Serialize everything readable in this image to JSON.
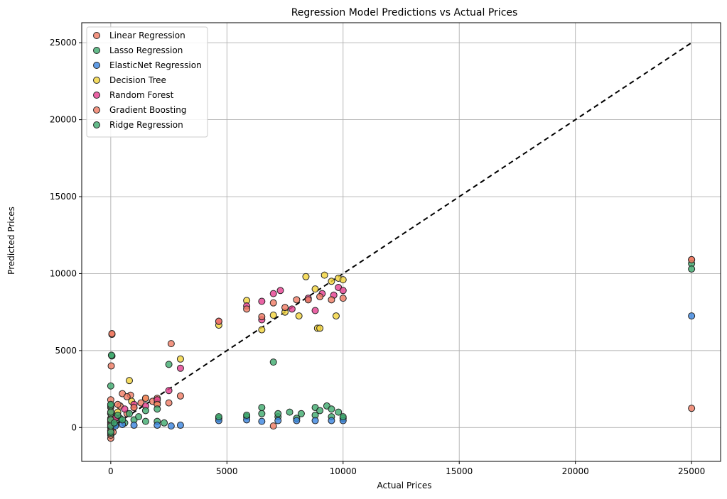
{
  "chart_data": {
    "type": "scatter",
    "title": "Regression Model Predictions vs Actual Prices",
    "xlabel": "Actual Prices",
    "ylabel": "Predicted Prices",
    "xlim": [
      -1250,
      26250
    ],
    "ylim": [
      -2200,
      26300
    ],
    "xticks": [
      0,
      5000,
      10000,
      15000,
      20000,
      25000
    ],
    "yticks": [
      0,
      5000,
      10000,
      15000,
      20000,
      25000
    ],
    "grid": true,
    "legend_position": "top-left",
    "reference_line": {
      "style": "dashed",
      "color": "#000000",
      "x": [
        0,
        25000
      ],
      "y": [
        0,
        25000
      ]
    },
    "series": [
      {
        "name": "Linear Regression",
        "color": "#f07b63",
        "points": [
          [
            0,
            -700
          ],
          [
            0,
            -500
          ],
          [
            0,
            -300
          ],
          [
            0,
            0
          ],
          [
            0,
            300
          ],
          [
            0,
            600
          ],
          [
            0,
            900
          ],
          [
            0,
            1300
          ],
          [
            0,
            1800
          ],
          [
            20,
            4000
          ],
          [
            50,
            6050
          ],
          [
            100,
            -300
          ],
          [
            200,
            200
          ],
          [
            300,
            700
          ],
          [
            400,
            1400
          ],
          [
            500,
            2200
          ],
          [
            700,
            900
          ],
          [
            850,
            2100
          ],
          [
            1000,
            1300
          ],
          [
            1300,
            1600
          ],
          [
            1800,
            1700
          ],
          [
            2000,
            1900
          ],
          [
            2600,
            5450
          ],
          [
            3000,
            2050
          ],
          [
            7000,
            100
          ],
          [
            25000,
            1250
          ],
          [
            25000,
            10900
          ]
        ]
      },
      {
        "name": "Lasso Regression",
        "color": "#3daa6d",
        "points": [
          [
            0,
            -400
          ],
          [
            0,
            0
          ],
          [
            0,
            400
          ],
          [
            0,
            900
          ],
          [
            0,
            1400
          ],
          [
            50,
            4650
          ],
          [
            200,
            200
          ],
          [
            400,
            600
          ],
          [
            600,
            300
          ],
          [
            1000,
            500
          ],
          [
            1500,
            400
          ],
          [
            2000,
            400
          ],
          [
            2300,
            300
          ],
          [
            4650,
            600
          ],
          [
            5850,
            700
          ],
          [
            6500,
            900
          ],
          [
            7200,
            700
          ],
          [
            8000,
            600
          ],
          [
            8800,
            800
          ],
          [
            9500,
            700
          ],
          [
            10000,
            600
          ],
          [
            25000,
            10650
          ]
        ]
      },
      {
        "name": "ElasticNet Regression",
        "color": "#3a84e0",
        "points": [
          [
            0,
            -200
          ],
          [
            0,
            150
          ],
          [
            0,
            500
          ],
          [
            200,
            100
          ],
          [
            500,
            200
          ],
          [
            1000,
            150
          ],
          [
            2000,
            150
          ],
          [
            2600,
            100
          ],
          [
            3000,
            150
          ],
          [
            4650,
            450
          ],
          [
            5850,
            500
          ],
          [
            6500,
            400
          ],
          [
            7200,
            450
          ],
          [
            8000,
            450
          ],
          [
            8800,
            450
          ],
          [
            9500,
            450
          ],
          [
            10000,
            450
          ],
          [
            25000,
            7250
          ]
        ]
      },
      {
        "name": "Decision Tree",
        "color": "#f2d33a",
        "points": [
          [
            0,
            300
          ],
          [
            300,
            1000
          ],
          [
            800,
            3050
          ],
          [
            900,
            1700
          ],
          [
            1500,
            1900
          ],
          [
            2000,
            1600
          ],
          [
            3000,
            4450
          ],
          [
            4650,
            6650
          ],
          [
            5850,
            8250
          ],
          [
            6500,
            6350
          ],
          [
            7000,
            7300
          ],
          [
            7500,
            7500
          ],
          [
            8100,
            7250
          ],
          [
            8400,
            9800
          ],
          [
            8800,
            9000
          ],
          [
            8900,
            6450
          ],
          [
            9000,
            6450
          ],
          [
            9200,
            9900
          ],
          [
            9500,
            9500
          ],
          [
            9700,
            7250
          ],
          [
            9800,
            9700
          ],
          [
            10000,
            9600
          ]
        ]
      },
      {
        "name": "Random Forest",
        "color": "#e53d8f",
        "points": [
          [
            0,
            200
          ],
          [
            200,
            600
          ],
          [
            600,
            1200
          ],
          [
            1000,
            1500
          ],
          [
            1500,
            1400
          ],
          [
            2000,
            1800
          ],
          [
            2500,
            2400
          ],
          [
            3000,
            3850
          ],
          [
            4650,
            6900
          ],
          [
            5850,
            7900
          ],
          [
            6500,
            8200
          ],
          [
            6500,
            7000
          ],
          [
            7000,
            8700
          ],
          [
            7300,
            8900
          ],
          [
            7800,
            7700
          ],
          [
            8500,
            8400
          ],
          [
            8800,
            7600
          ],
          [
            9100,
            8700
          ],
          [
            9600,
            8600
          ],
          [
            9800,
            9100
          ],
          [
            10000,
            8900
          ]
        ]
      },
      {
        "name": "Gradient Boosting",
        "color": "#f07b63",
        "points": [
          [
            0,
            -200
          ],
          [
            0,
            500
          ],
          [
            0,
            1000
          ],
          [
            50,
            6100
          ],
          [
            300,
            1500
          ],
          [
            700,
            2000
          ],
          [
            1000,
            1300
          ],
          [
            1500,
            1900
          ],
          [
            2000,
            1500
          ],
          [
            2500,
            1600
          ],
          [
            4650,
            6900
          ],
          [
            5850,
            7700
          ],
          [
            6500,
            7200
          ],
          [
            7000,
            8100
          ],
          [
            7500,
            7800
          ],
          [
            8000,
            8300
          ],
          [
            8500,
            8300
          ],
          [
            9000,
            8500
          ],
          [
            9500,
            8300
          ],
          [
            10000,
            8400
          ],
          [
            25000,
            10900
          ]
        ]
      },
      {
        "name": "Ridge Regression",
        "color": "#3daa6d",
        "points": [
          [
            0,
            -300
          ],
          [
            0,
            100
          ],
          [
            0,
            500
          ],
          [
            0,
            1000
          ],
          [
            0,
            1500
          ],
          [
            0,
            2700
          ],
          [
            30,
            4700
          ],
          [
            150,
            300
          ],
          [
            300,
            800
          ],
          [
            500,
            500
          ],
          [
            800,
            900
          ],
          [
            1200,
            700
          ],
          [
            1500,
            1100
          ],
          [
            2000,
            1200
          ],
          [
            2500,
            4100
          ],
          [
            4650,
            700
          ],
          [
            5850,
            800
          ],
          [
            6500,
            1300
          ],
          [
            7000,
            4250
          ],
          [
            7200,
            900
          ],
          [
            7700,
            1000
          ],
          [
            8200,
            900
          ],
          [
            8800,
            1300
          ],
          [
            9000,
            1100
          ],
          [
            9300,
            1400
          ],
          [
            9500,
            1200
          ],
          [
            9800,
            1000
          ],
          [
            10000,
            700
          ],
          [
            25000,
            10300
          ]
        ]
      }
    ]
  }
}
